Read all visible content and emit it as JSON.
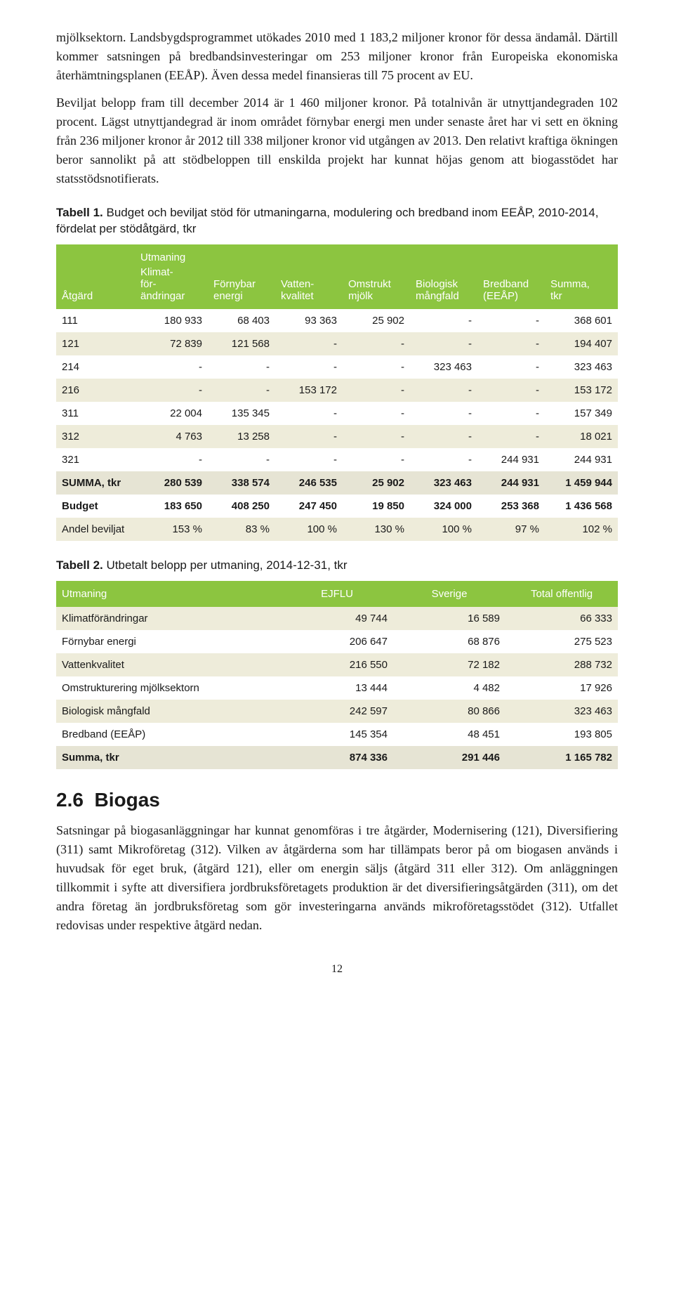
{
  "paragraphs": {
    "p1": "mjölksektorn. Landsbygdsprogrammet utökades 2010 med 1 183,2 miljoner kronor för dessa ändamål. Därtill kommer satsningen på bredbandsinvesteringar om 253 miljoner kronor från Europeiska ekonomiska återhämtningsplanen (EEÅP). Även dessa medel finansieras till 75 procent av EU.",
    "p2": "Beviljat belopp fram till december 2014 är 1 460 miljoner kronor. På totalnivån är utnyttjandegraden 102 procent. Lägst utnyttjandegrad är inom området förnybar energi men under senaste året har vi sett en ökning från 236 miljoner kronor år 2012 till 338 miljoner kronor vid utgången av 2013. Den relativt kraftiga ökningen beror sannolikt på att stödbeloppen till enskilda projekt har kunnat höjas genom att biogasstödet har statsstödsnotifierats.",
    "p3": "Satsningar på biogasanläggningar har kunnat genomföras i tre åtgärder, Modernisering (121), Diversifiering (311) samt Mikroföretag (312). Vilken av åtgärderna som har tillämpats beror på om biogasen används i huvudsak för eget bruk, (åtgärd 121), eller om energin säljs (åtgärd 311 eller 312). Om anläggningen tillkommit i syfte att diversifiera jordbruksföretagets produktion är det diversifieringsåtgärden (311), om det andra företag än jordbruksföretag som gör investeringarna används mikroföretagsstödet (312). Utfallet redovisas under respektive åtgärd nedan."
  },
  "table1": {
    "caption_bold": "Tabell 1.",
    "caption_rest": " Budget och beviljat stöd för utmaningarna, modulering och bredband inom EEÅP, 2010-2014, fördelat per stödåtgärd, tkr",
    "header_group": "Utmaning",
    "headers": [
      "Åtgärd",
      "Klimat-för-ändringar",
      "Förnybar energi",
      "Vatten-kvalitet",
      "Omstrukt mjölk",
      "Biologisk mångfald",
      "Bredband (EEÅP)",
      "Summa, tkr"
    ],
    "rows": [
      [
        "111",
        "180 933",
        "68 403",
        "93 363",
        "25 902",
        "-",
        "-",
        "368 601"
      ],
      [
        "121",
        "72 839",
        "121 568",
        "-",
        "-",
        "-",
        "-",
        "194 407"
      ],
      [
        "214",
        "-",
        "-",
        "-",
        "-",
        "323 463",
        "-",
        "323 463"
      ],
      [
        "216",
        "-",
        "-",
        "153 172",
        "-",
        "-",
        "-",
        "153 172"
      ],
      [
        "311",
        "22 004",
        "135 345",
        "-",
        "-",
        "-",
        "-",
        "157 349"
      ],
      [
        "312",
        "4 763",
        "13 258",
        "-",
        "-",
        "-",
        "-",
        "18 021"
      ],
      [
        "321",
        "-",
        "-",
        "-",
        "-",
        "-",
        "244 931",
        "244 931"
      ],
      [
        "SUMMA, tkr",
        "280 539",
        "338 574",
        "246 535",
        "25 902",
        "323 463",
        "244 931",
        "1 459 944"
      ],
      [
        "Budget",
        "183 650",
        "408 250",
        "247 450",
        "19 850",
        "324 000",
        "253 368",
        "1 436 568"
      ],
      [
        "Andel beviljat",
        "153 %",
        "83 %",
        "100 %",
        "130 %",
        "100 %",
        "97 %",
        "102 %"
      ]
    ],
    "row_styles": [
      "white",
      "alt",
      "white",
      "alt",
      "white",
      "alt",
      "white",
      "alt-grey",
      "white",
      "alt"
    ],
    "bold_rows": [
      7,
      8
    ],
    "col_widths": [
      "14%",
      "13%",
      "12%",
      "12%",
      "12%",
      "12%",
      "12%",
      "13%"
    ],
    "header_bg": "#8cc540",
    "header_fg": "#ffffff"
  },
  "table2": {
    "caption_bold": "Tabell 2.",
    "caption_rest": " Utbetalt belopp per utmaning, 2014-12-31, tkr",
    "headers": [
      "Utmaning",
      "EJFLU",
      "Sverige",
      "Total offentlig"
    ],
    "rows": [
      [
        "Klimatförändringar",
        "49 744",
        "16 589",
        "66 333"
      ],
      [
        "Förnybar energi",
        "206 647",
        "68 876",
        "275 523"
      ],
      [
        "Vattenkvalitet",
        "216 550",
        "72 182",
        "288 732"
      ],
      [
        "Omstrukturering mjölksektorn",
        "13 444",
        "4 482",
        "17 926"
      ],
      [
        "Biologisk mångfald",
        "242 597",
        "80 866",
        "323 463"
      ],
      [
        "Bredband (EEÅP)",
        "145 354",
        "48 451",
        "193 805"
      ],
      [
        "Summa, tkr",
        "874 336",
        "291 446",
        "1 165 782"
      ]
    ],
    "row_styles": [
      "alt",
      "white",
      "alt",
      "white",
      "alt",
      "white",
      "alt-grey"
    ],
    "bold_rows": [
      6
    ],
    "col_widths": [
      "40%",
      "20%",
      "20%",
      "20%"
    ],
    "header_bg": "#8cc540",
    "header_fg": "#ffffff"
  },
  "section": {
    "num": "2.6",
    "title": "Biogas"
  },
  "page_number": "12"
}
